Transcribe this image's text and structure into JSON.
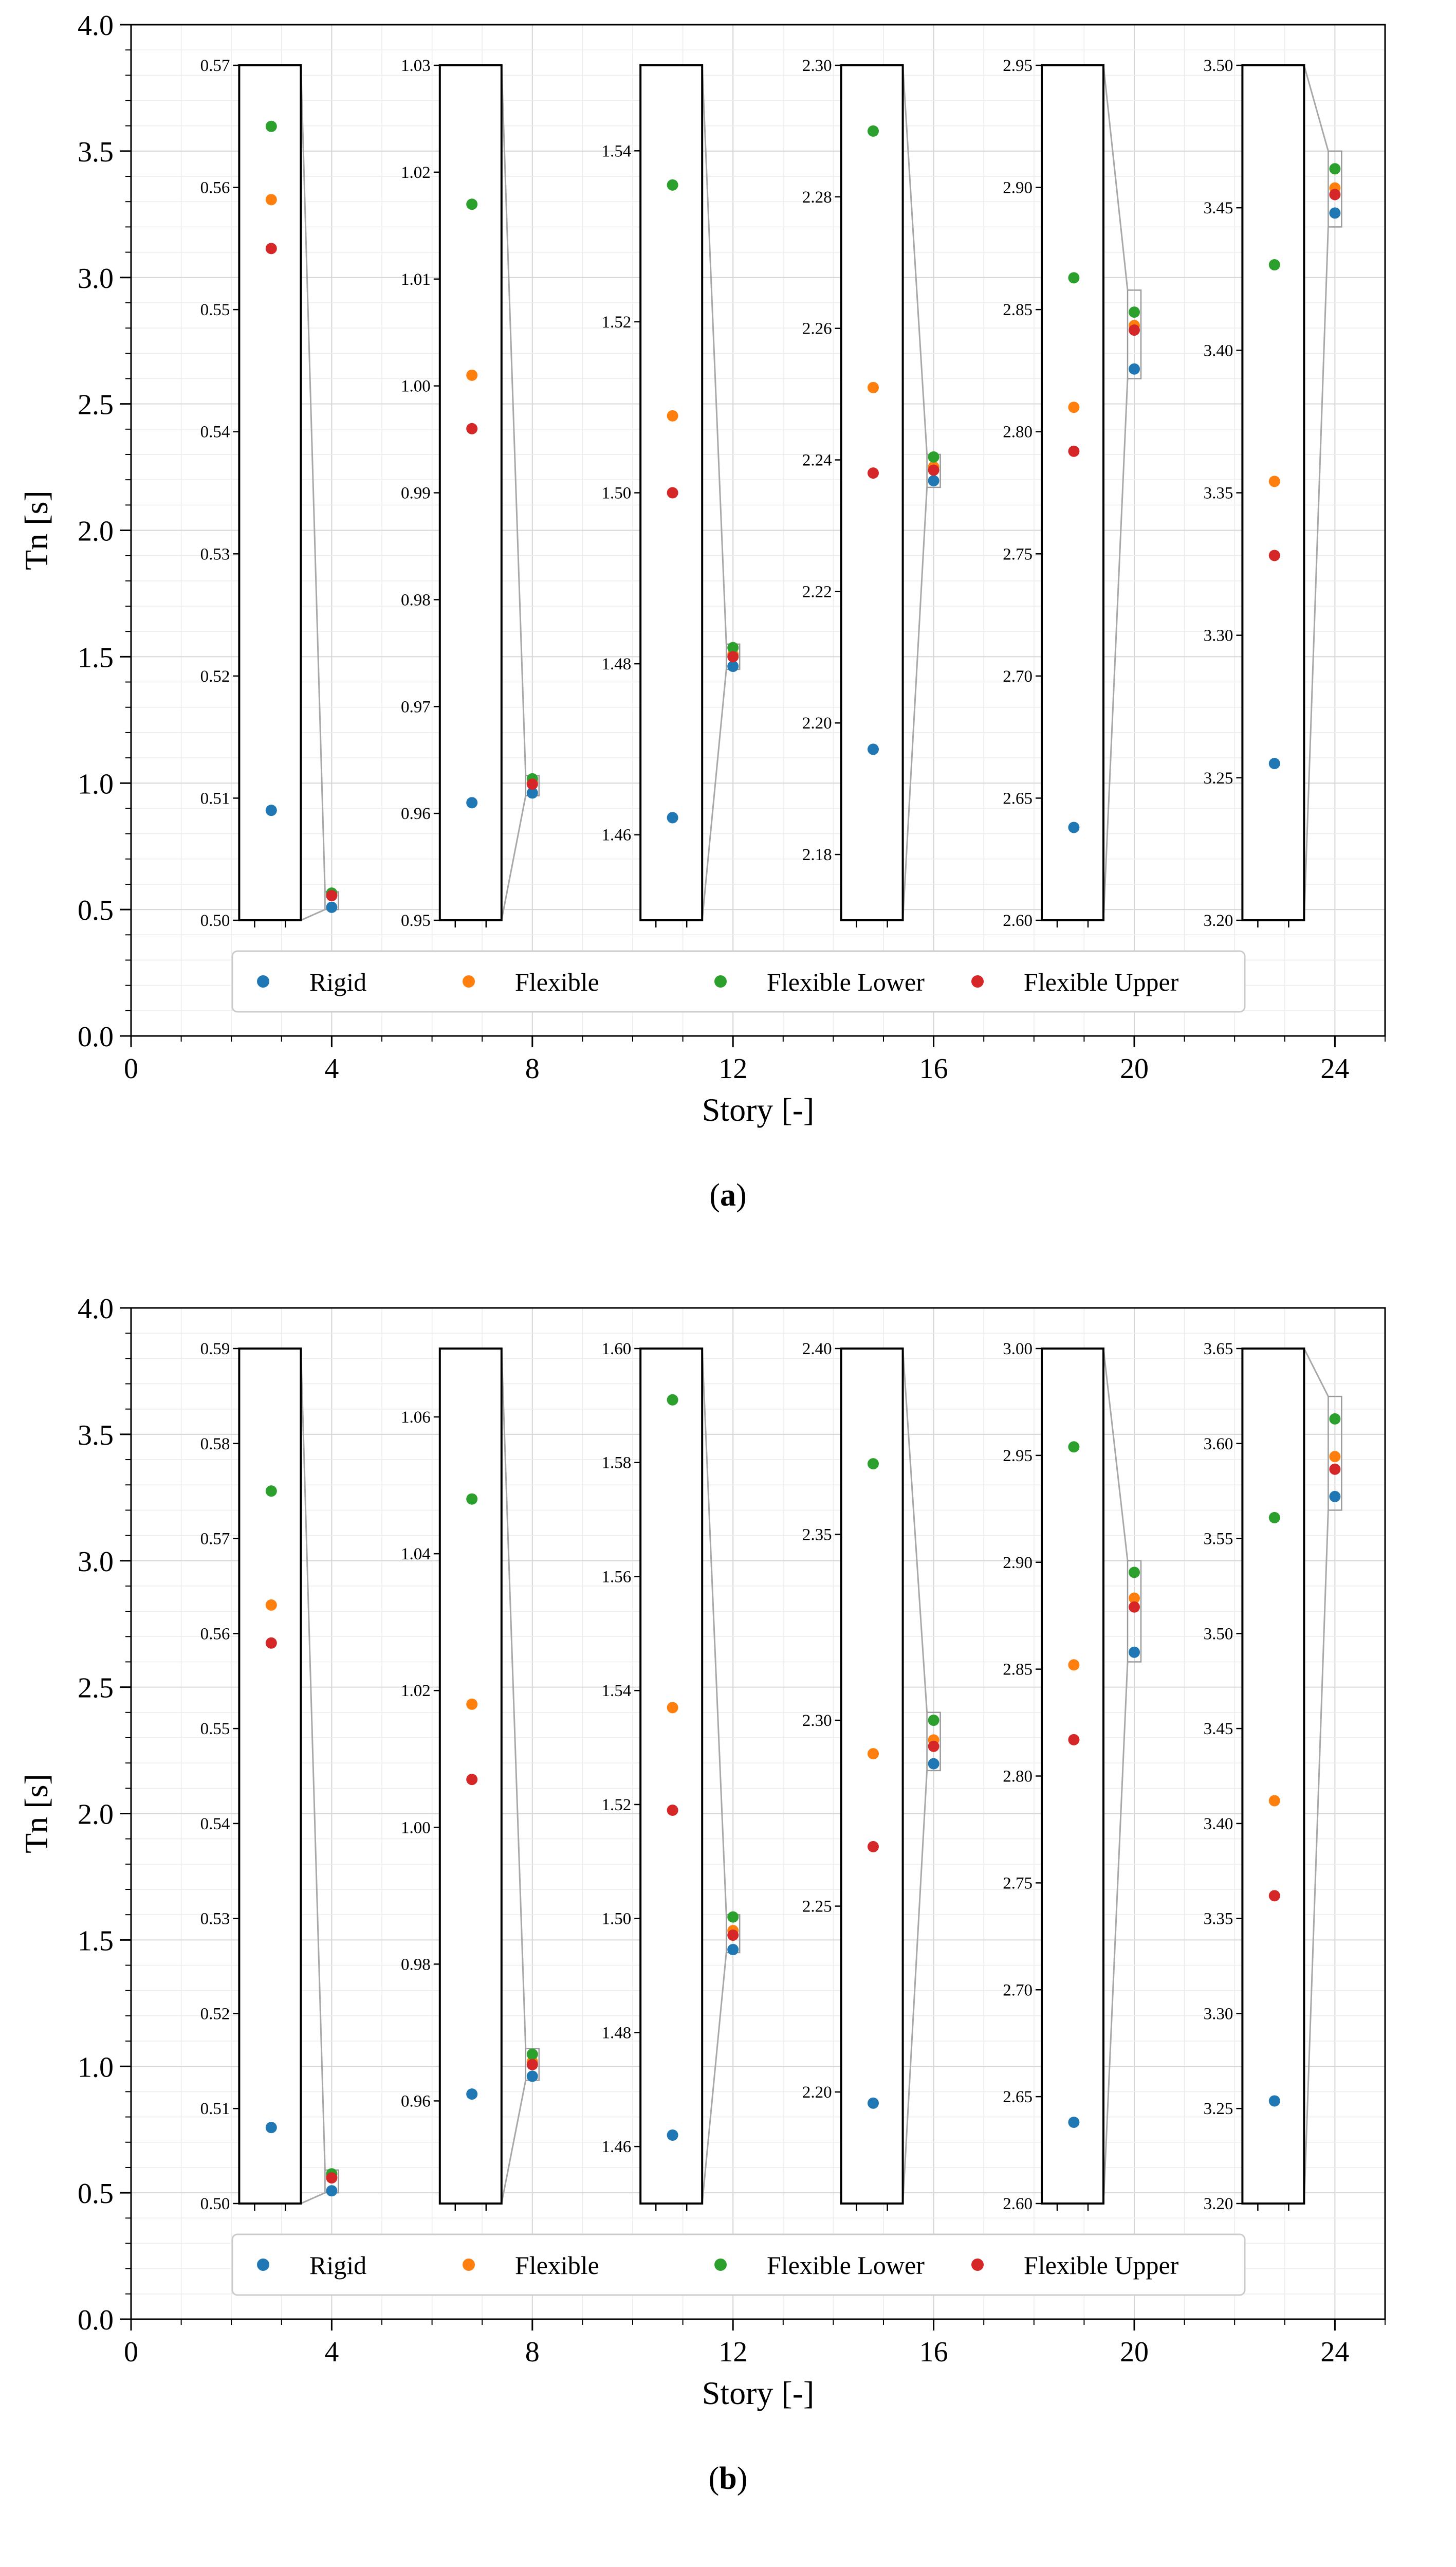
{
  "chart_data": [
    {
      "panel": "a",
      "caption_letter": "a",
      "type": "scatter",
      "xlabel": "Story [-]",
      "ylabel": "Tn [s]",
      "xlim": [
        0,
        25
      ],
      "ylim": [
        0,
        4
      ],
      "xticks": [
        0,
        4,
        8,
        12,
        16,
        20,
        24
      ],
      "yticks": [
        0.0,
        0.5,
        1.0,
        1.5,
        2.0,
        2.5,
        3.0,
        3.5,
        4.0
      ],
      "grid": true,
      "legend_position": "bottom-center",
      "series": [
        {
          "name": "Rigid",
          "color": "#1f77b4",
          "x": [
            4,
            8,
            12,
            16,
            20,
            24
          ],
          "y": [
            0.509,
            0.961,
            1.462,
            2.196,
            2.638,
            3.255
          ]
        },
        {
          "name": "Flexible",
          "color": "#ff7f0e",
          "x": [
            4,
            8,
            12,
            16,
            20,
            24
          ],
          "y": [
            0.559,
            1.001,
            1.509,
            2.251,
            2.81,
            3.354
          ]
        },
        {
          "name": "Flexible Lower",
          "color": "#2ca02c",
          "x": [
            4,
            8,
            12,
            16,
            20,
            24
          ],
          "y": [
            0.565,
            1.017,
            1.536,
            2.29,
            2.863,
            3.43
          ]
        },
        {
          "name": "Flexible Upper",
          "color": "#d62728",
          "x": [
            4,
            8,
            12,
            16,
            20,
            24
          ],
          "y": [
            0.555,
            0.996,
            1.5,
            2.238,
            2.792,
            3.328
          ]
        }
      ],
      "insets": [
        {
          "story": 4,
          "ylim": [
            0.5,
            0.57
          ],
          "yticks": [
            "0.50",
            "0.51",
            "0.52",
            "0.53",
            "0.54",
            "0.55",
            "0.56",
            "0.57"
          ]
        },
        {
          "story": 8,
          "ylim": [
            0.95,
            1.03
          ],
          "yticks": [
            "0.95",
            "0.96",
            "0.97",
            "0.98",
            "0.99",
            "1.00",
            "1.01",
            "1.02",
            "1.03"
          ]
        },
        {
          "story": 12,
          "ylim": [
            1.45,
            1.55
          ],
          "yticks": [
            "1.46",
            "1.48",
            "1.50",
            "1.52",
            "1.54"
          ]
        },
        {
          "story": 16,
          "ylim": [
            2.17,
            2.3
          ],
          "yticks": [
            "2.18",
            "2.20",
            "2.22",
            "2.24",
            "2.26",
            "2.28",
            "2.30"
          ]
        },
        {
          "story": 20,
          "ylim": [
            2.6,
            2.95
          ],
          "yticks": [
            "2.60",
            "2.65",
            "2.70",
            "2.75",
            "2.80",
            "2.85",
            "2.90",
            "2.95"
          ]
        },
        {
          "story": 24,
          "ylim": [
            3.2,
            3.5
          ],
          "yticks": [
            "3.20",
            "3.25",
            "3.30",
            "3.35",
            "3.40",
            "3.45",
            "3.50"
          ]
        }
      ]
    },
    {
      "panel": "b",
      "caption_letter": "b",
      "type": "scatter",
      "xlabel": "Story [-]",
      "ylabel": "Tn [s]",
      "xlim": [
        0,
        25
      ],
      "ylim": [
        0,
        4
      ],
      "xticks": [
        0,
        4,
        8,
        12,
        16,
        20,
        24
      ],
      "yticks": [
        0.0,
        0.5,
        1.0,
        1.5,
        2.0,
        2.5,
        3.0,
        3.5,
        4.0
      ],
      "grid": true,
      "legend_position": "bottom-center",
      "series": [
        {
          "name": "Rigid",
          "color": "#1f77b4",
          "x": [
            4,
            8,
            12,
            16,
            20,
            24
          ],
          "y": [
            0.508,
            0.961,
            1.462,
            2.197,
            2.638,
            3.254
          ]
        },
        {
          "name": "Flexible",
          "color": "#ff7f0e",
          "x": [
            4,
            8,
            12,
            16,
            20,
            24
          ],
          "y": [
            0.563,
            1.018,
            1.537,
            2.291,
            2.852,
            3.412
          ]
        },
        {
          "name": "Flexible Lower",
          "color": "#2ca02c",
          "x": [
            4,
            8,
            12,
            16,
            20,
            24
          ],
          "y": [
            0.575,
            1.048,
            1.591,
            2.369,
            2.954,
            3.561
          ]
        },
        {
          "name": "Flexible Upper",
          "color": "#d62728",
          "x": [
            4,
            8,
            12,
            16,
            20,
            24
          ],
          "y": [
            0.559,
            1.007,
            1.519,
            2.266,
            2.817,
            3.362
          ]
        }
      ],
      "insets": [
        {
          "story": 4,
          "ylim": [
            0.5,
            0.59
          ],
          "yticks": [
            "0.50",
            "0.51",
            "0.52",
            "0.53",
            "0.54",
            "0.55",
            "0.56",
            "0.57",
            "0.58",
            "0.59"
          ]
        },
        {
          "story": 8,
          "ylim": [
            0.945,
            1.07
          ],
          "yticks": [
            "0.96",
            "0.98",
            "1.00",
            "1.02",
            "1.04",
            "1.06"
          ]
        },
        {
          "story": 12,
          "ylim": [
            1.45,
            1.6
          ],
          "yticks": [
            "1.46",
            "1.48",
            "1.50",
            "1.52",
            "1.54",
            "1.56",
            "1.58",
            "1.60"
          ]
        },
        {
          "story": 16,
          "ylim": [
            2.17,
            2.4
          ],
          "yticks": [
            "2.20",
            "2.25",
            "2.30",
            "2.35",
            "2.40"
          ]
        },
        {
          "story": 20,
          "ylim": [
            2.6,
            3.0
          ],
          "yticks": [
            "2.60",
            "2.65",
            "2.70",
            "2.75",
            "2.80",
            "2.85",
            "2.90",
            "2.95",
            "3.00"
          ]
        },
        {
          "story": 24,
          "ylim": [
            3.2,
            3.65
          ],
          "yticks": [
            "3.20",
            "3.25",
            "3.30",
            "3.35",
            "3.40",
            "3.45",
            "3.50",
            "3.55",
            "3.60",
            "3.65"
          ]
        }
      ]
    }
  ]
}
